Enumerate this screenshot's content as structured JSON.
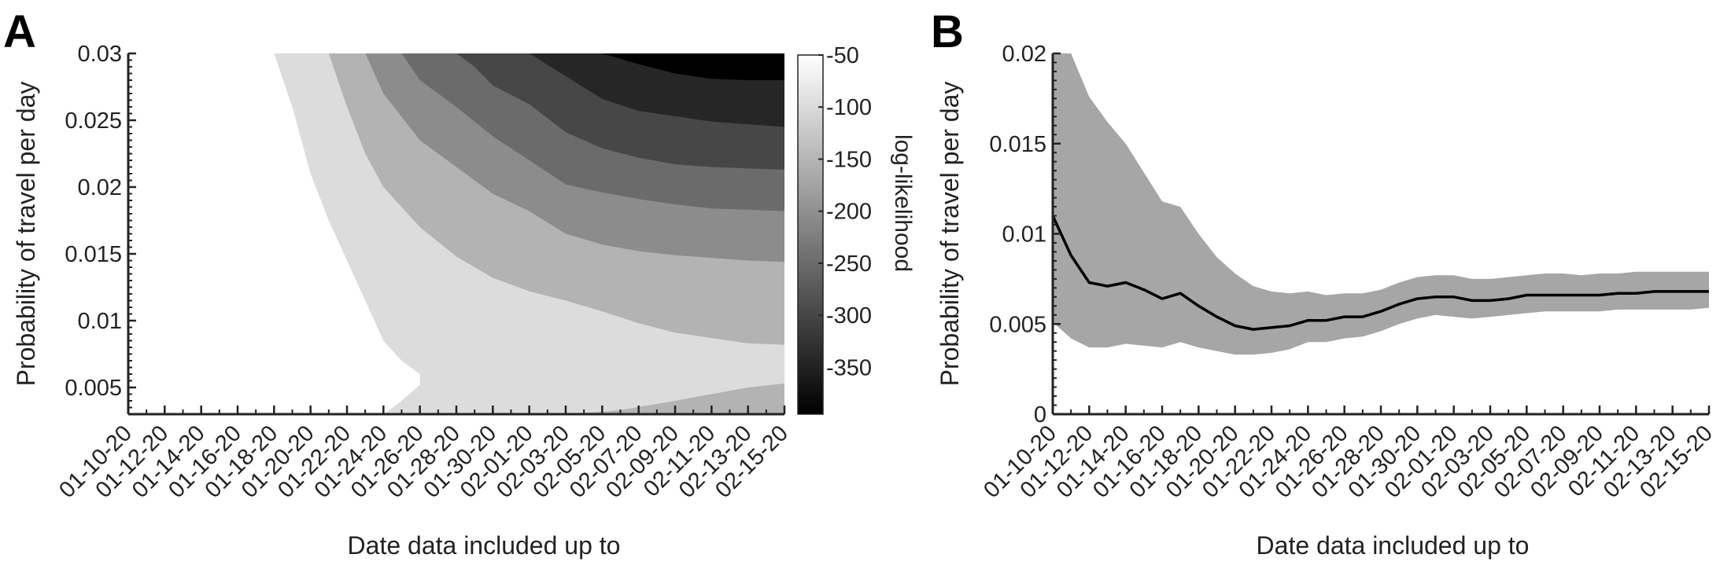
{
  "chart_data": [
    {
      "panel": "A",
      "type": "heatmap",
      "subtype": "filled-contour",
      "xlabel": "Date data included up to",
      "ylabel": "Probability of travel per day",
      "x_categories": [
        "01-10-20",
        "01-12-20",
        "01-14-20",
        "01-16-20",
        "01-18-20",
        "01-20-20",
        "01-22-20",
        "01-24-20",
        "01-26-20",
        "01-28-20",
        "01-30-20",
        "02-01-20",
        "02-03-20",
        "02-05-20",
        "02-07-20",
        "02-09-20",
        "02-11-20",
        "02-13-20",
        "02-15-20"
      ],
      "ylim": [
        0.003,
        0.03
      ],
      "y_ticks": [
        0.005,
        0.01,
        0.015,
        0.02,
        0.025,
        0.03
      ],
      "y_tick_labels": [
        "0.005",
        "0.01",
        "0.015",
        "0.02",
        "0.025",
        "0.03"
      ],
      "colorbar": {
        "label": "log-likelihood",
        "range": [
          -395,
          -50
        ],
        "ticks": [
          -50,
          -100,
          -150,
          -200,
          -250,
          -300,
          -350
        ],
        "tick_labels": [
          "-50",
          "-100",
          "-150",
          "-200",
          "-250",
          "-300",
          "-350"
        ],
        "colormap": "gray"
      },
      "contour_levels": [
        -50,
        -100,
        -150,
        -200,
        -250,
        -300,
        -350
      ],
      "level_colors": [
        "#ffffff",
        "#dcdcdc",
        "#b3b3b3",
        "#8c8c8c",
        "#6b6b6b",
        "#474747",
        "#262626",
        "#000000"
      ],
      "contour_boundaries": [
        {
          "level": -50,
          "points": [
            [
              "01-18-20",
              0.03
            ],
            [
              "01-19-20",
              0.026
            ],
            [
              "01-20-20",
              0.021
            ],
            [
              "01-21-20",
              0.0175
            ],
            [
              "01-22-20",
              0.0145
            ],
            [
              "01-23-20",
              0.0115
            ],
            [
              "01-24-20",
              0.0085
            ],
            [
              "01-25-20",
              0.007
            ],
            [
              "01-26-20",
              0.006
            ],
            [
              "01-26-20",
              0.0052
            ],
            [
              "01-25-20",
              0.004
            ],
            [
              "01-24-20",
              0.003
            ]
          ]
        },
        {
          "level": -100,
          "points": [
            [
              "01-21-20",
              0.03
            ],
            [
              "01-22-20",
              0.026
            ],
            [
              "01-23-20",
              0.0225
            ],
            [
              "01-24-20",
              0.02
            ],
            [
              "01-26-20",
              0.017
            ],
            [
              "01-28-20",
              0.0148
            ],
            [
              "01-30-20",
              0.0132
            ],
            [
              "02-01-20",
              0.0122
            ],
            [
              "02-03-20",
              0.0115
            ],
            [
              "02-05-20",
              0.0107
            ],
            [
              "02-07-20",
              0.0098
            ],
            [
              "02-09-20",
              0.0091
            ],
            [
              "02-11-20",
              0.0087
            ],
            [
              "02-13-20",
              0.0083
            ],
            [
              "02-15-20",
              0.0082
            ]
          ]
        },
        {
          "level": -100,
          "region": "bottom-right",
          "points": [
            [
              "02-03-20",
              0.003
            ],
            [
              "02-06-20",
              0.0033
            ],
            [
              "02-09-20",
              0.004
            ],
            [
              "02-11-20",
              0.0045
            ],
            [
              "02-13-20",
              0.005
            ],
            [
              "02-15-20",
              0.0053
            ]
          ]
        },
        {
          "level": -150,
          "points": [
            [
              "01-23-20",
              0.03
            ],
            [
              "01-24-20",
              0.027
            ],
            [
              "01-26-20",
              0.0235
            ],
            [
              "01-28-20",
              0.0215
            ],
            [
              "01-30-20",
              0.0195
            ],
            [
              "02-01-20",
              0.0182
            ],
            [
              "02-03-20",
              0.0165
            ],
            [
              "02-05-20",
              0.0157
            ],
            [
              "02-07-20",
              0.0152
            ],
            [
              "02-09-20",
              0.0149
            ],
            [
              "02-11-20",
              0.0147
            ],
            [
              "02-13-20",
              0.0145
            ],
            [
              "02-15-20",
              0.0144
            ]
          ]
        },
        {
          "level": -200,
          "points": [
            [
              "01-25-20",
              0.03
            ],
            [
              "01-26-20",
              0.028
            ],
            [
              "01-28-20",
              0.026
            ],
            [
              "01-30-20",
              0.0238
            ],
            [
              "02-01-20",
              0.022
            ],
            [
              "02-03-20",
              0.0202
            ],
            [
              "02-05-20",
              0.0196
            ],
            [
              "02-07-20",
              0.0191
            ],
            [
              "02-09-20",
              0.0187
            ],
            [
              "02-11-20",
              0.0184
            ],
            [
              "02-13-20",
              0.0183
            ],
            [
              "02-15-20",
              0.0182
            ]
          ]
        },
        {
          "level": -250,
          "points": [
            [
              "01-28-20",
              0.03
            ],
            [
              "01-29-20",
              0.029
            ],
            [
              "01-30-20",
              0.0276
            ],
            [
              "02-01-20",
              0.0262
            ],
            [
              "02-03-20",
              0.0241
            ],
            [
              "02-05-20",
              0.0229
            ],
            [
              "02-07-20",
              0.0222
            ],
            [
              "02-09-20",
              0.0217
            ],
            [
              "02-11-20",
              0.0215
            ],
            [
              "02-13-20",
              0.0214
            ],
            [
              "02-15-20",
              0.0213
            ]
          ]
        },
        {
          "level": -300,
          "points": [
            [
              "02-01-20",
              0.03
            ],
            [
              "02-03-20",
              0.0283
            ],
            [
              "02-05-20",
              0.0266
            ],
            [
              "02-07-20",
              0.0257
            ],
            [
              "02-09-20",
              0.0253
            ],
            [
              "02-11-20",
              0.0249
            ],
            [
              "02-13-20",
              0.0247
            ],
            [
              "02-15-20",
              0.0245
            ]
          ]
        },
        {
          "level": -350,
          "points": [
            [
              "02-05-20",
              0.03
            ],
            [
              "02-07-20",
              0.0292
            ],
            [
              "02-09-20",
              0.0285
            ],
            [
              "02-11-20",
              0.0281
            ],
            [
              "02-13-20",
              0.028
            ],
            [
              "02-15-20",
              0.028
            ]
          ]
        }
      ]
    },
    {
      "panel": "B",
      "type": "line",
      "xlabel": "Date data included up to",
      "ylabel": "Probability of travel per day",
      "x_categories": [
        "01-10-20",
        "01-12-20",
        "01-14-20",
        "01-16-20",
        "01-18-20",
        "01-20-20",
        "01-22-20",
        "01-24-20",
        "01-26-20",
        "01-28-20",
        "01-30-20",
        "02-01-20",
        "02-03-20",
        "02-05-20",
        "02-07-20",
        "02-09-20",
        "02-11-20",
        "02-13-20",
        "02-15-20"
      ],
      "ylim": [
        0,
        0.02
      ],
      "y_ticks": [
        0,
        0.005,
        0.01,
        0.015,
        0.02
      ],
      "y_tick_labels": [
        "0",
        "0.005",
        "0.01",
        "0.015",
        "0.02"
      ],
      "x": [
        "01-10-20",
        "01-11-20",
        "01-12-20",
        "01-13-20",
        "01-14-20",
        "01-15-20",
        "01-16-20",
        "01-17-20",
        "01-18-20",
        "01-19-20",
        "01-20-20",
        "01-21-20",
        "01-22-20",
        "01-23-20",
        "01-24-20",
        "01-25-20",
        "01-26-20",
        "01-27-20",
        "01-28-20",
        "01-29-20",
        "01-30-20",
        "01-31-20",
        "02-01-20",
        "02-02-20",
        "02-03-20",
        "02-04-20",
        "02-05-20",
        "02-06-20",
        "02-07-20",
        "02-08-20",
        "02-09-20",
        "02-10-20",
        "02-11-20",
        "02-12-20",
        "02-13-20",
        "02-14-20",
        "02-15-20"
      ],
      "series": [
        {
          "role": "estimate",
          "color": "#000000",
          "values": [
            0.011,
            0.0088,
            0.0073,
            0.0071,
            0.0073,
            0.0069,
            0.0064,
            0.0067,
            0.006,
            0.0054,
            0.0049,
            0.0047,
            0.0048,
            0.0049,
            0.0052,
            0.0052,
            0.0054,
            0.0054,
            0.0057,
            0.0061,
            0.0064,
            0.0065,
            0.0065,
            0.0063,
            0.0063,
            0.0064,
            0.0066,
            0.0066,
            0.0066,
            0.0066,
            0.0066,
            0.0067,
            0.0067,
            0.0068,
            0.0068,
            0.0068,
            0.0068
          ]
        },
        {
          "role": "interval-upper",
          "color": "#a6a6a6",
          "values": [
            0.02,
            0.02,
            0.0176,
            0.0162,
            0.015,
            0.0134,
            0.0118,
            0.0115,
            0.01,
            0.0087,
            0.0078,
            0.0071,
            0.0068,
            0.0067,
            0.0068,
            0.0066,
            0.0067,
            0.0067,
            0.0069,
            0.0073,
            0.0076,
            0.0077,
            0.0077,
            0.0075,
            0.0075,
            0.0076,
            0.0077,
            0.0078,
            0.0078,
            0.0077,
            0.0078,
            0.0078,
            0.0079,
            0.0079,
            0.0079,
            0.0079,
            0.0079
          ]
        },
        {
          "role": "interval-lower",
          "color": "#a6a6a6",
          "values": [
            0.0051,
            0.0042,
            0.0037,
            0.0037,
            0.0039,
            0.0038,
            0.0037,
            0.004,
            0.0037,
            0.0035,
            0.0033,
            0.0033,
            0.0034,
            0.0036,
            0.004,
            0.004,
            0.0042,
            0.0043,
            0.0046,
            0.005,
            0.0053,
            0.0055,
            0.0054,
            0.0053,
            0.0054,
            0.0055,
            0.0056,
            0.0057,
            0.0057,
            0.0057,
            0.0057,
            0.0058,
            0.0058,
            0.0058,
            0.0058,
            0.0058,
            0.0059
          ]
        }
      ]
    }
  ],
  "panel_labels": [
    "A",
    "B"
  ]
}
